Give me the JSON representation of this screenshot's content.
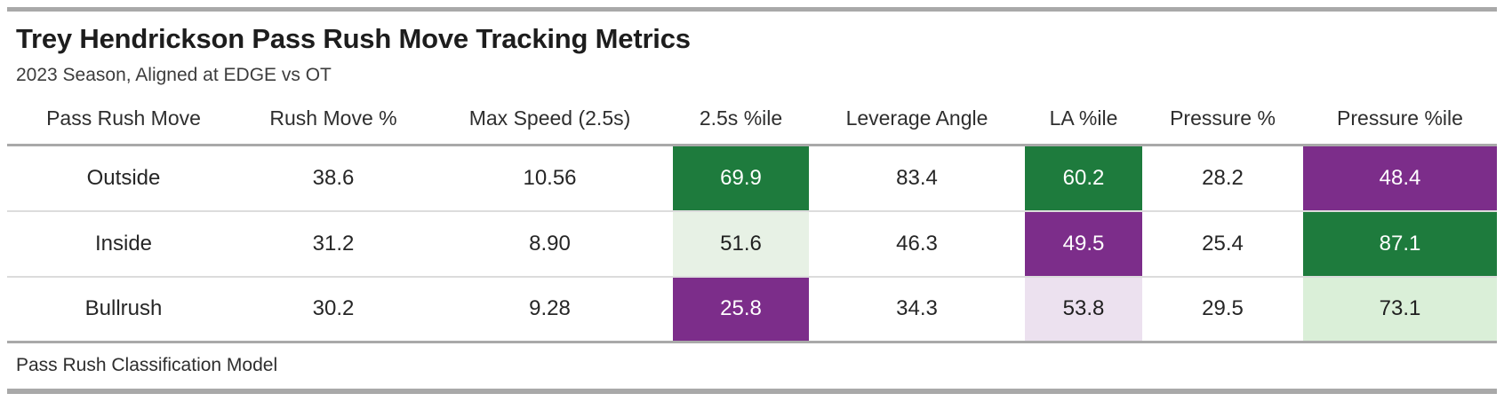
{
  "header": {
    "title": "Trey Hendrickson Pass Rush Move Tracking Metrics",
    "subtitle": "2023 Season, Aligned at EDGE vs OT"
  },
  "table": {
    "columns": [
      "Pass Rush Move",
      "Rush Move %",
      "Max Speed (2.5s)",
      "2.5s %ile",
      "Leverage Angle",
      "LA %ile",
      "Pressure %",
      "Pressure %ile"
    ],
    "rows": [
      {
        "cells": [
          {
            "value": "Outside",
            "style": "plain"
          },
          {
            "value": "38.6",
            "style": "plain"
          },
          {
            "value": "10.56",
            "style": "plain"
          },
          {
            "value": "69.9",
            "style": "green-strong"
          },
          {
            "value": "83.4",
            "style": "plain"
          },
          {
            "value": "60.2",
            "style": "green-strong"
          },
          {
            "value": "28.2",
            "style": "plain"
          },
          {
            "value": "48.4",
            "style": "purple-strong"
          }
        ]
      },
      {
        "cells": [
          {
            "value": "Inside",
            "style": "plain"
          },
          {
            "value": "31.2",
            "style": "plain"
          },
          {
            "value": "8.90",
            "style": "plain"
          },
          {
            "value": "51.6",
            "style": "green-soft"
          },
          {
            "value": "46.3",
            "style": "plain"
          },
          {
            "value": "49.5",
            "style": "purple-strong"
          },
          {
            "value": "25.4",
            "style": "plain"
          },
          {
            "value": "87.1",
            "style": "green-strong"
          }
        ]
      },
      {
        "cells": [
          {
            "value": "Bullrush",
            "style": "plain"
          },
          {
            "value": "30.2",
            "style": "plain"
          },
          {
            "value": "9.28",
            "style": "plain"
          },
          {
            "value": "25.8",
            "style": "purple-strong"
          },
          {
            "value": "34.3",
            "style": "plain"
          },
          {
            "value": "53.8",
            "style": "purple-soft"
          },
          {
            "value": "29.5",
            "style": "plain"
          },
          {
            "value": "73.1",
            "style": "green-medium"
          }
        ]
      }
    ]
  },
  "footer": {
    "caption": "Pass Rush Classification Model"
  },
  "colors": {
    "green_strong": "#1e7b3d",
    "green_medium": "#daefd8",
    "green_soft": "#e7f1e5",
    "purple_strong": "#7c2d8a",
    "purple_soft": "#ece1ef",
    "rule_gray": "#a9a9a9",
    "row_divider": "#dcdcdc",
    "title_text": "#1d1d1d",
    "body_text": "#262626"
  },
  "chart_data": {
    "type": "table",
    "title": "Trey Hendrickson Pass Rush Move Tracking Metrics",
    "subtitle": "2023 Season, Aligned at EDGE vs OT",
    "caption": "Pass Rush Classification Model",
    "columns": [
      "Pass Rush Move",
      "Rush Move %",
      "Max Speed (2.5s)",
      "2.5s %ile",
      "Leverage Angle",
      "LA %ile",
      "Pressure %",
      "Pressure %ile"
    ],
    "rows": [
      [
        "Outside",
        38.6,
        10.56,
        69.9,
        83.4,
        60.2,
        28.2,
        48.4
      ],
      [
        "Inside",
        31.2,
        8.9,
        51.6,
        46.3,
        49.5,
        25.4,
        87.1
      ],
      [
        "Bullrush",
        30.2,
        9.28,
        25.8,
        34.3,
        53.8,
        29.5,
        73.1
      ]
    ],
    "highlighted_columns": [
      "2.5s %ile",
      "LA %ile",
      "Pressure %ile"
    ],
    "cell_highlights": {
      "Outside": {
        "2.5s %ile": "green-strong",
        "LA %ile": "green-strong",
        "Pressure %ile": "purple-strong"
      },
      "Inside": {
        "2.5s %ile": "green-soft",
        "LA %ile": "purple-strong",
        "Pressure %ile": "green-strong"
      },
      "Bullrush": {
        "2.5s %ile": "purple-strong",
        "LA %ile": "purple-soft",
        "Pressure %ile": "green-medium"
      }
    },
    "legend_position": "none",
    "grid": "row-dividers"
  }
}
